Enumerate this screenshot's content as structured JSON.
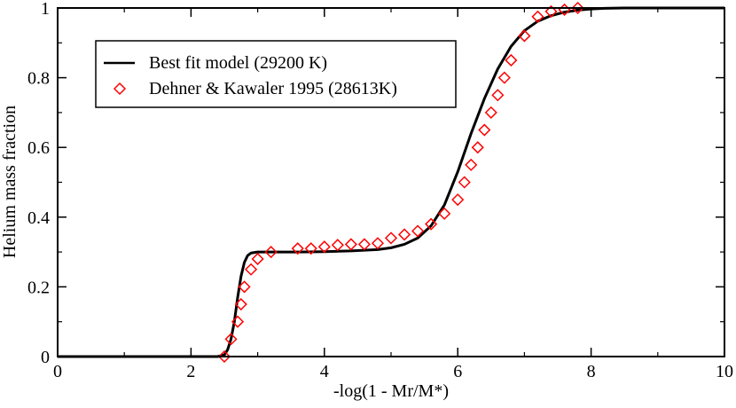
{
  "chart_data": {
    "type": "line",
    "title": "",
    "xlabel": "-log(1 - Mr/M*)",
    "ylabel": "Helium mass fraction",
    "xlim": [
      0,
      10
    ],
    "ylim": [
      0,
      1
    ],
    "x_ticks": [
      0,
      2,
      4,
      6,
      8,
      10
    ],
    "y_ticks": [
      0,
      0.2,
      0.4,
      0.6,
      0.8,
      1
    ],
    "x_tick_labels": [
      "0",
      "2",
      "4",
      "6",
      "8",
      "10"
    ],
    "y_tick_labels": [
      "0",
      "0.2",
      "0.4",
      "0.6",
      "0.8",
      "1"
    ],
    "grid": false,
    "legend_position": "top-left",
    "series": [
      {
        "name": "Best fit model (29200 K)",
        "style": "line",
        "color": "#000000",
        "x": [
          0,
          2.4,
          2.5,
          2.55,
          2.6,
          2.65,
          2.7,
          2.75,
          2.8,
          2.85,
          2.9,
          3.0,
          3.2,
          3.6,
          4.0,
          4.4,
          4.8,
          5.0,
          5.2,
          5.4,
          5.6,
          5.8,
          6.0,
          6.2,
          6.4,
          6.6,
          6.8,
          7.0,
          7.2,
          7.4,
          7.6,
          7.8,
          8.0,
          8.2,
          8.5,
          9.0,
          10.0
        ],
        "y": [
          0,
          0,
          0.005,
          0.02,
          0.05,
          0.1,
          0.17,
          0.23,
          0.27,
          0.29,
          0.297,
          0.3,
          0.3,
          0.3,
          0.301,
          0.303,
          0.307,
          0.312,
          0.322,
          0.34,
          0.375,
          0.435,
          0.53,
          0.64,
          0.74,
          0.825,
          0.89,
          0.935,
          0.962,
          0.978,
          0.988,
          0.994,
          0.997,
          0.999,
          1.0,
          1.0,
          1.0
        ]
      },
      {
        "name": "Dehner & Kawaler 1995 (28613K)",
        "style": "markers",
        "marker": "diamond",
        "color": "#ff0000",
        "x": [
          2.5,
          2.6,
          2.7,
          2.75,
          2.8,
          2.9,
          3.0,
          3.2,
          3.6,
          3.8,
          4.0,
          4.2,
          4.4,
          4.6,
          4.8,
          5.0,
          5.2,
          5.4,
          5.6,
          5.8,
          6.0,
          6.1,
          6.2,
          6.3,
          6.4,
          6.5,
          6.6,
          6.7,
          6.8,
          7.0,
          7.2,
          7.4,
          7.6,
          7.8
        ],
        "y": [
          0.0,
          0.05,
          0.1,
          0.15,
          0.2,
          0.25,
          0.28,
          0.3,
          0.31,
          0.31,
          0.315,
          0.32,
          0.322,
          0.322,
          0.325,
          0.34,
          0.35,
          0.36,
          0.38,
          0.41,
          0.45,
          0.5,
          0.55,
          0.6,
          0.65,
          0.7,
          0.75,
          0.8,
          0.85,
          0.92,
          0.975,
          0.99,
          0.995,
          1.0
        ]
      }
    ]
  }
}
